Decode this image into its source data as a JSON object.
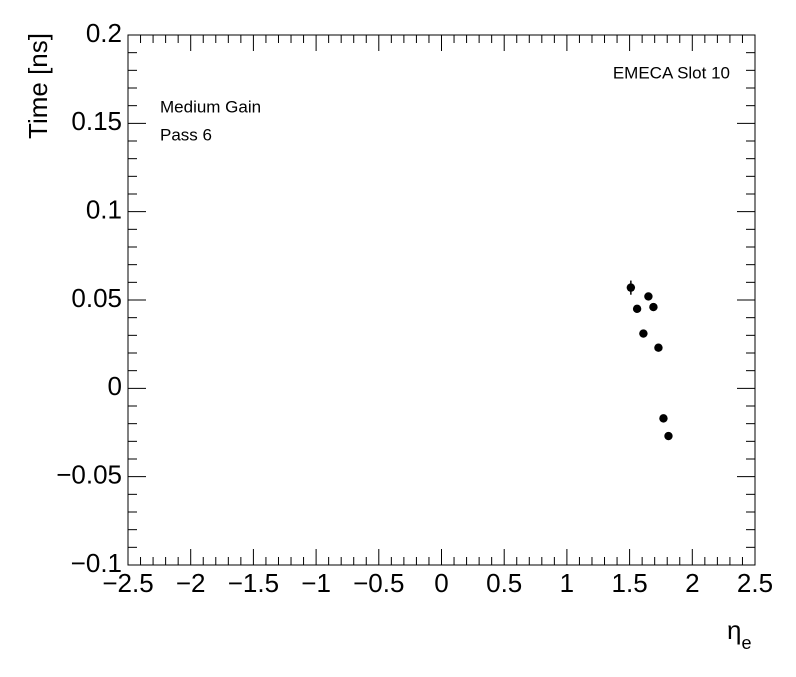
{
  "chart_data": {
    "type": "scatter",
    "x_label": "η",
    "x_label_subscript": "e",
    "y_label": "Time [ns]",
    "annotations": [
      "EMECA Slot 10",
      "Medium Gain",
      "Pass 6"
    ],
    "color": "#000000",
    "x": [
      1.51,
      1.56,
      1.61,
      1.65,
      1.69,
      1.73,
      1.77,
      1.81
    ],
    "values": [
      0.057,
      0.045,
      0.031,
      0.052,
      0.046,
      0.023,
      -0.017,
      -0.027
    ],
    "errors": [
      0.004,
      0.002,
      0.002,
      0.002,
      0.002,
      0.002,
      0.002,
      0.002
    ],
    "xlim": [
      -2.5,
      2.5
    ],
    "ylim": [
      -0.1,
      0.2
    ],
    "xticks": [
      {
        "value": -2.5,
        "label": "−2.5"
      },
      {
        "value": -2,
        "label": "−2"
      },
      {
        "value": -1.5,
        "label": "−1.5"
      },
      {
        "value": -1,
        "label": "−1"
      },
      {
        "value": -0.5,
        "label": "−0.5"
      },
      0,
      0.5,
      1,
      1.5,
      2,
      2.5
    ],
    "yticks": [
      {
        "value": -0.1,
        "label": "−0.1"
      },
      {
        "value": -0.05,
        "label": "−0.05"
      },
      0,
      0.05,
      0.1,
      0.15,
      0.2
    ]
  }
}
